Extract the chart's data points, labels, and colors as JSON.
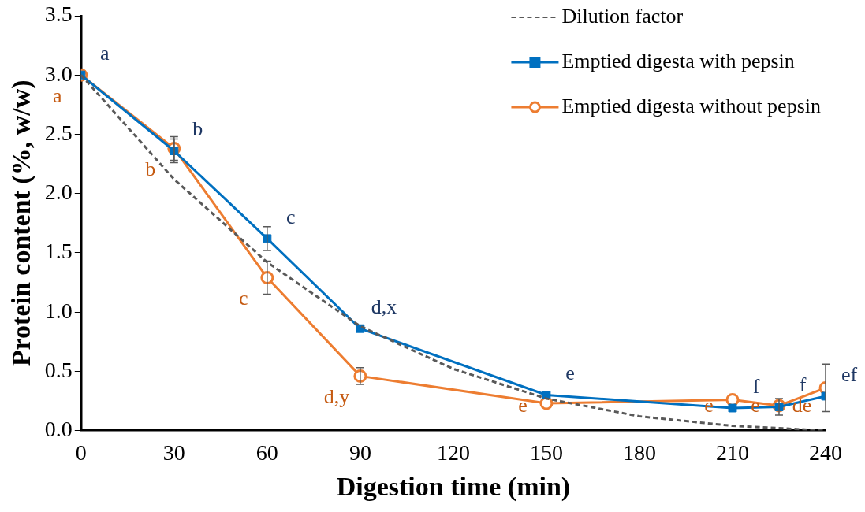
{
  "chart_data": {
    "type": "line",
    "xlabel": "Digestion time (min)",
    "ylabel": "Protein content (%, w/w)",
    "xlim": [
      0,
      240
    ],
    "xticks": [
      0,
      30,
      60,
      90,
      120,
      150,
      180,
      210,
      240
    ],
    "ylim": [
      0,
      3.5
    ],
    "yticks": [
      {
        "value": 0,
        "label": "0.0"
      },
      {
        "value": 0.5,
        "label": "0.5"
      },
      {
        "value": 1,
        "label": "1.0"
      },
      {
        "value": 1.5,
        "label": "1.5"
      },
      {
        "value": 2,
        "label": "2.0"
      },
      {
        "value": 2.5,
        "label": "2.5"
      },
      {
        "value": 3,
        "label": "3.0"
      },
      {
        "value": 3.5,
        "label": "3.5"
      }
    ],
    "grid": false,
    "legend": "top right",
    "series": [
      {
        "name": "Dilution factor",
        "color": "#595959",
        "line_style": "dashed",
        "marker": "none",
        "x": [
          0,
          30,
          60,
          90,
          120,
          150,
          180,
          210,
          240
        ],
        "values": [
          3.0,
          2.12,
          1.42,
          0.88,
          0.52,
          0.27,
          0.12,
          0.04,
          0.0
        ]
      },
      {
        "name": "Emptied digesta with pepsin",
        "color": "#0070c0",
        "line_style": "solid",
        "marker": "square",
        "x": [
          0,
          30,
          60,
          90,
          150,
          210,
          225,
          240
        ],
        "values": [
          3.0,
          2.36,
          1.62,
          0.86,
          0.3,
          0.19,
          0.2,
          0.29
        ],
        "errors": [
          null,
          0.1,
          0.1,
          null,
          null,
          null,
          0.07,
          null
        ],
        "value_labels": [
          "a",
          "b",
          "c",
          "d,x",
          "e",
          "f",
          "f",
          "ef"
        ]
      },
      {
        "name": "Emptied digesta without pepsin",
        "color": "#ed7d31",
        "line_style": "solid",
        "marker": "circle",
        "x": [
          0,
          30,
          60,
          90,
          150,
          210,
          225,
          240
        ],
        "values": [
          3.0,
          2.38,
          1.29,
          0.46,
          0.23,
          0.26,
          0.21,
          0.36
        ],
        "errors": [
          null,
          0.1,
          0.14,
          0.07,
          null,
          null,
          null,
          0.2
        ],
        "value_labels": [
          "a",
          "b",
          "c",
          "d,y",
          "e",
          "e",
          "e",
          "de"
        ]
      }
    ]
  }
}
